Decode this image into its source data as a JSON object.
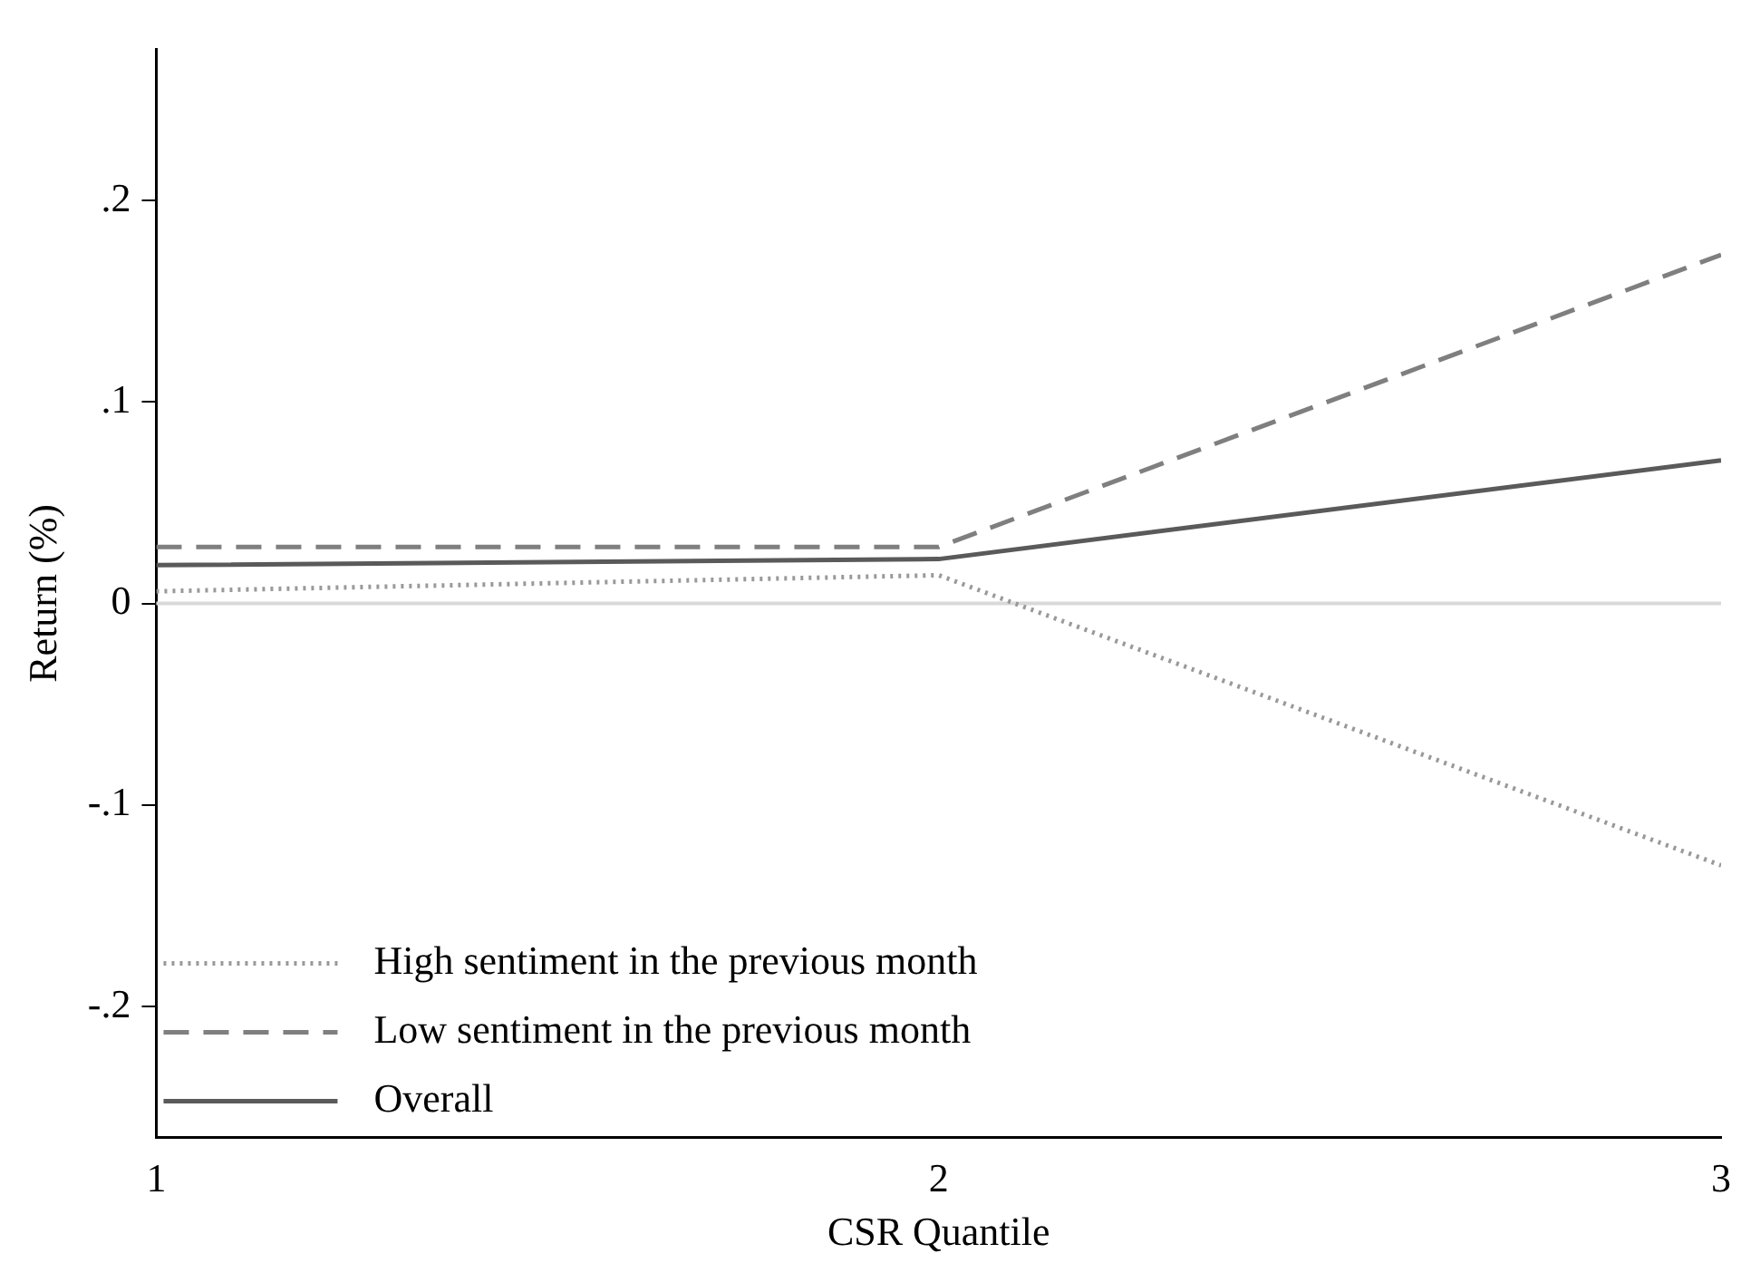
{
  "chart_data": {
    "type": "line",
    "xlabel": "CSR Quantile",
    "ylabel": "Return (%)",
    "x": [
      1,
      2,
      3
    ],
    "xlim": [
      1,
      3
    ],
    "xticks": [
      1,
      2,
      3
    ],
    "ylim": [
      -0.265,
      0.275
    ],
    "yticks": [
      {
        "value": -0.2,
        "label": "-.2"
      },
      {
        "value": -0.1,
        "label": "-.1"
      },
      0,
      {
        "value": 0.1,
        "label": ".1"
      },
      {
        "value": 0.2,
        "label": ".2"
      }
    ],
    "grid": false,
    "legend": "bottom left",
    "marker": "none",
    "series": [
      {
        "name": "High sentiment in the previous month",
        "color": "#999999",
        "line_style": "dotted",
        "values": [
          0.006,
          0.014,
          -0.13
        ]
      },
      {
        "name": "Low sentiment in the previous month",
        "color": "#7f7f7f",
        "line_style": "dashed",
        "values": [
          0.028,
          0.028,
          0.173
        ]
      },
      {
        "name": "Overall",
        "color": "#5a5a5a",
        "line_style": "solid",
        "values": [
          0.019,
          0.022,
          0.071
        ]
      }
    ],
    "ref_lines": [
      {
        "axis": "y",
        "value": 0,
        "color": "#d9d9d9"
      }
    ]
  }
}
